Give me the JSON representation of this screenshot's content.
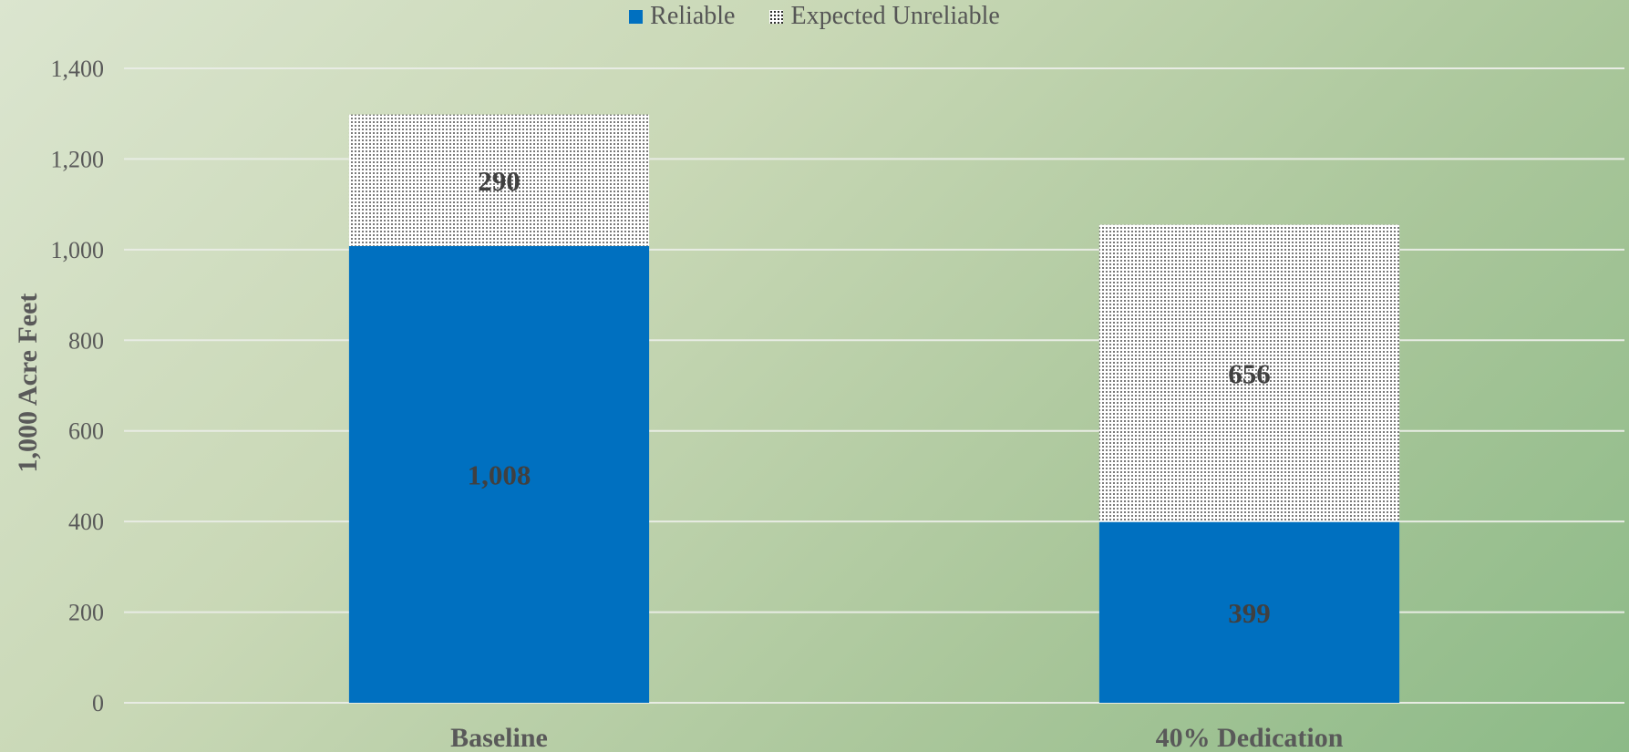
{
  "chart_data": {
    "type": "bar",
    "stacked": true,
    "categories": [
      "Baseline",
      "40% Dedication"
    ],
    "series": [
      {
        "name": "Reliable",
        "values": [
          1008,
          399
        ],
        "color": "#0070c0",
        "pattern": "solid"
      },
      {
        "name": "Expected Unreliable",
        "values": [
          290,
          656
        ],
        "color": "#ffffff",
        "pattern": "dotted"
      }
    ],
    "data_labels": {
      "Reliable": [
        "1,008",
        "399"
      ],
      "Expected Unreliable": [
        "290",
        "656"
      ]
    },
    "title": "",
    "xlabel": "",
    "ylabel": "1,000 Acre Feet",
    "ylim": [
      0,
      1400
    ],
    "yticks": [
      0,
      200,
      400,
      600,
      800,
      1000,
      1200,
      1400
    ],
    "ytick_labels": [
      "0",
      "200",
      "400",
      "600",
      "800",
      "1,000",
      "1,200",
      "1,400"
    ],
    "grid": true,
    "legend_position": "top-center"
  }
}
